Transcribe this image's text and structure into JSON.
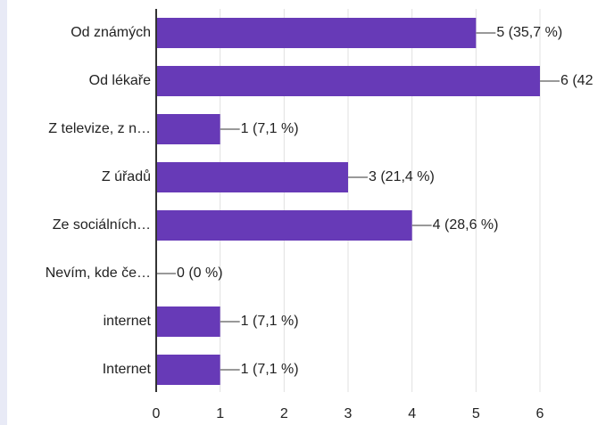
{
  "chart_data": {
    "type": "bar",
    "orientation": "horizontal",
    "categories": [
      "Od známých",
      "Od lékaře",
      "Z televize, z n…",
      "Z úřadů",
      "Ze sociálních…",
      "Nevím, kde če…",
      "internet",
      "Internet"
    ],
    "values": [
      5,
      6,
      1,
      3,
      4,
      0,
      1,
      1
    ],
    "value_labels": [
      "5 (35,7 %)",
      "6 (42",
      "1 (7,1 %)",
      "3 (21,4 %)",
      "4 (28,6 %)",
      "0 (0 %)",
      "1 (7,1 %)",
      "1 (7,1 %)"
    ],
    "color": "#673ab7",
    "xlim": [
      0,
      6
    ],
    "xticks": [
      0,
      1,
      2,
      3,
      4,
      5,
      6
    ],
    "grid": true
  }
}
